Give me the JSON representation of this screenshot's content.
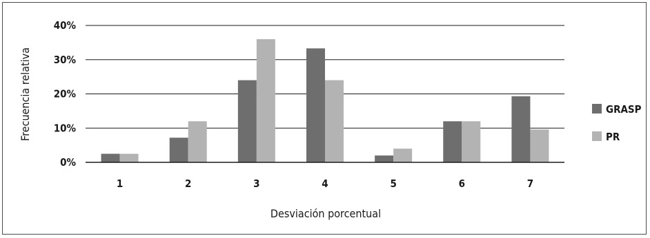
{
  "chart_data": {
    "type": "bar",
    "title": "",
    "xlabel": "Desviación porcentual",
    "ylabel": "Frecuencia relativa",
    "categories": [
      "1",
      "2",
      "3",
      "4",
      "5",
      "6",
      "7"
    ],
    "series": [
      {
        "name": "GRASP",
        "color": "#6e6e6e",
        "values": [
          2.5,
          7.2,
          24.0,
          33.3,
          2.0,
          12.0,
          19.3
        ]
      },
      {
        "name": "PR",
        "color": "#b3b3b3",
        "values": [
          2.5,
          12.0,
          36.0,
          24.0,
          4.0,
          12.0,
          9.6
        ]
      }
    ],
    "ylim": [
      0,
      40
    ],
    "yticks": [
      "0%",
      "10%",
      "20%",
      "30%",
      "40%"
    ],
    "ytick_values": [
      0,
      10,
      20,
      30,
      40
    ],
    "grid": true,
    "legend_position": "right"
  }
}
